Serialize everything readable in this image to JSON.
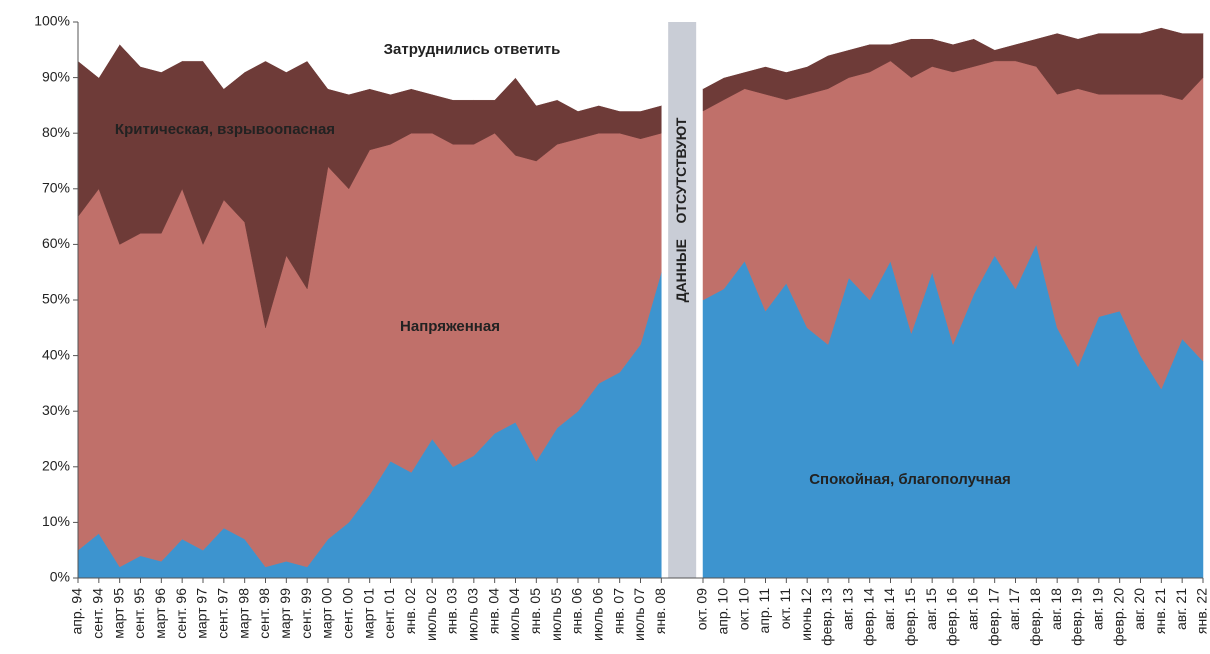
{
  "chart_data": {
    "type": "stacked_area",
    "categories": [
      "апр. 94",
      "сент. 94",
      "март 95",
      "сент. 95",
      "март 96",
      "сент. 96",
      "март 97",
      "сент. 97",
      "март 98",
      "сент. 98",
      "март 99",
      "сент. 99",
      "март 00",
      "сент. 00",
      "март 01",
      "сент. 01",
      "янв. 02",
      "июль 02",
      "янв. 03",
      "июль 03",
      "янв. 04",
      "июль 04",
      "янв. 05",
      "июль 05",
      "янв. 06",
      "июль 06",
      "янв. 07",
      "июль 07",
      "янв. 08",
      null,
      "окт. 09",
      "апр. 10",
      "окт. 10",
      "апр. 11",
      "окт. 11",
      "июнь 12",
      "февр. 13",
      "авг. 13",
      "февр. 14",
      "авг. 14",
      "февр. 15",
      "авг. 15",
      "февр. 16",
      "авг. 16",
      "февр. 17",
      "авг. 17",
      "февр. 18",
      "авг. 18",
      "февр. 19",
      "авг. 19",
      "февр. 20",
      "авг. 20",
      "янв. 21",
      "авг. 21",
      "янв. 22"
    ],
    "series": [
      {
        "name": "Спокойная, благополучная",
        "color": "#3d94cf",
        "label_color": "#ffffff",
        "values": [
          5,
          8,
          2,
          4,
          3,
          7,
          5,
          9,
          7,
          2,
          3,
          2,
          7,
          10,
          15,
          21,
          19,
          25,
          20,
          22,
          26,
          28,
          21,
          27,
          30,
          35,
          37,
          42,
          55,
          null,
          50,
          52,
          57,
          48,
          53,
          45,
          42,
          54,
          50,
          57,
          44,
          55,
          42,
          51,
          58,
          52,
          60,
          45,
          38,
          47,
          48,
          40,
          34,
          43,
          39
        ]
      },
      {
        "name": "Напряженная",
        "color": "#c0706a",
        "label_color": "#ffffff",
        "values": [
          60,
          62,
          58,
          58,
          59,
          63,
          55,
          59,
          57,
          43,
          55,
          50,
          67,
          60,
          62,
          57,
          61,
          55,
          58,
          56,
          54,
          48,
          54,
          51,
          49,
          45,
          43,
          37,
          25,
          null,
          34,
          34,
          31,
          39,
          33,
          42,
          46,
          36,
          41,
          36,
          46,
          37,
          49,
          41,
          35,
          41,
          32,
          42,
          50,
          40,
          39,
          47,
          53,
          43,
          51
        ]
      },
      {
        "name": "Критическая, взрывоопасная",
        "color": "#6e3b38",
        "label_color": "#ffffff",
        "values": [
          28,
          20,
          36,
          30,
          29,
          23,
          33,
          20,
          27,
          48,
          33,
          41,
          14,
          17,
          11,
          9,
          8,
          7,
          8,
          8,
          6,
          14,
          10,
          8,
          5,
          5,
          4,
          5,
          5,
          null,
          4,
          4,
          3,
          5,
          5,
          5,
          6,
          5,
          5,
          3,
          7,
          5,
          5,
          5,
          2,
          3,
          5,
          11,
          9,
          11,
          11,
          11,
          12,
          12,
          8
        ]
      },
      {
        "name": "Затруднились ответить",
        "color": "#ffffff",
        "label_color": "#222222",
        "values": [
          7,
          10,
          4,
          8,
          9,
          7,
          7,
          12,
          9,
          7,
          9,
          7,
          12,
          13,
          12,
          13,
          12,
          13,
          14,
          14,
          14,
          10,
          15,
          14,
          16,
          15,
          16,
          16,
          15,
          null,
          12,
          10,
          9,
          8,
          9,
          8,
          6,
          5,
          4,
          4,
          3,
          3,
          4,
          3,
          5,
          4,
          3,
          2,
          3,
          2,
          2,
          2,
          1,
          2,
          2
        ]
      }
    ],
    "annotation": "ДАННЫЕ    ОТСУТСТВУЮТ",
    "ylim": [
      0,
      100
    ],
    "yticks": [
      {
        "value": 0,
        "label": "0%"
      },
      {
        "value": 10,
        "label": "10%"
      },
      {
        "value": 20,
        "label": "20%"
      },
      {
        "value": 30,
        "label": "30%"
      },
      {
        "value": 40,
        "label": "40%"
      },
      {
        "value": 50,
        "label": "50%"
      },
      {
        "value": 60,
        "label": "60%"
      },
      {
        "value": 70,
        "label": "70%"
      },
      {
        "value": 80,
        "label": "80%"
      },
      {
        "value": 90,
        "label": "90%"
      },
      {
        "value": 100,
        "label": "100%"
      }
    ]
  }
}
